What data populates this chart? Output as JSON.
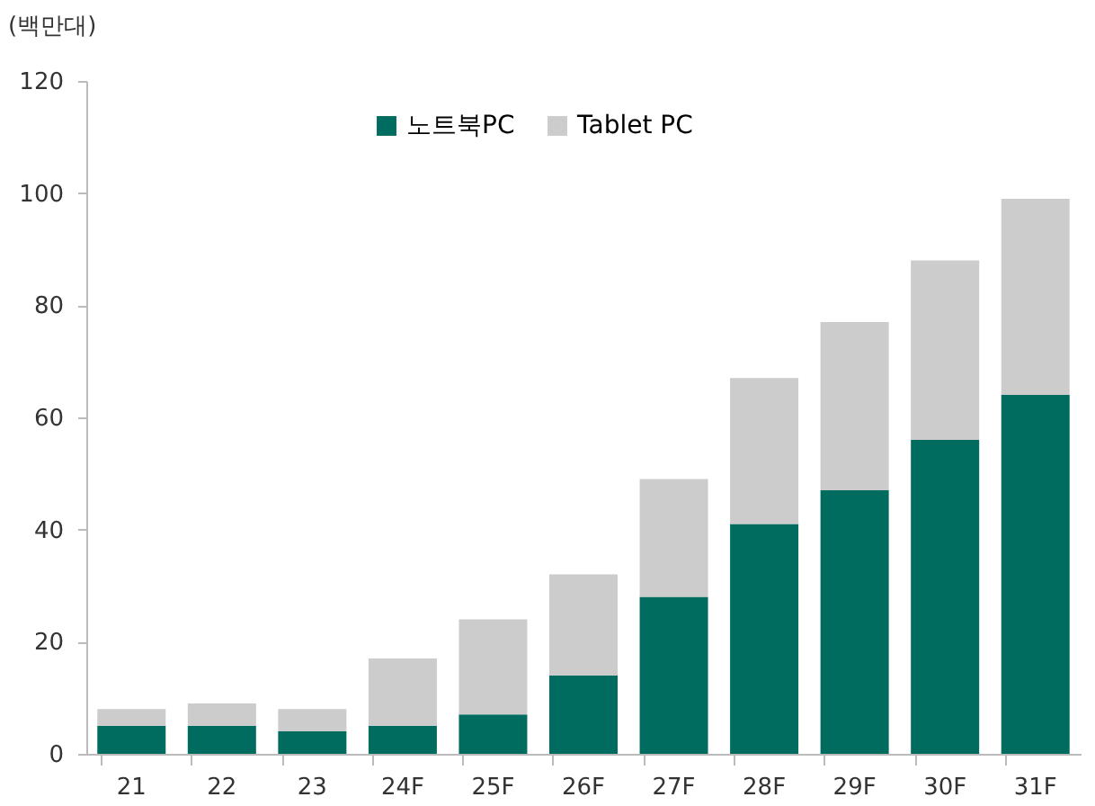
{
  "chart_data": {
    "type": "bar",
    "ylabel": "(백만대)",
    "stacked": true,
    "categories": [
      "21",
      "22",
      "23",
      "24F",
      "25F",
      "26F",
      "27F",
      "28F",
      "29F",
      "30F",
      "31F"
    ],
    "series": [
      {
        "name": "노트북PC",
        "color": "#006b5f",
        "values": [
          5,
          5,
          4,
          5,
          7,
          14,
          28,
          41,
          47,
          56,
          64
        ]
      },
      {
        "name": "Tablet PC",
        "color": "#cccccc",
        "values": [
          3,
          4,
          4,
          12,
          17,
          18,
          21,
          26,
          30,
          32,
          35
        ]
      }
    ],
    "ylim": [
      0,
      120
    ],
    "yticks": [
      0,
      20,
      40,
      60,
      80,
      100,
      120
    ],
    "grid": false,
    "legend": "top"
  }
}
